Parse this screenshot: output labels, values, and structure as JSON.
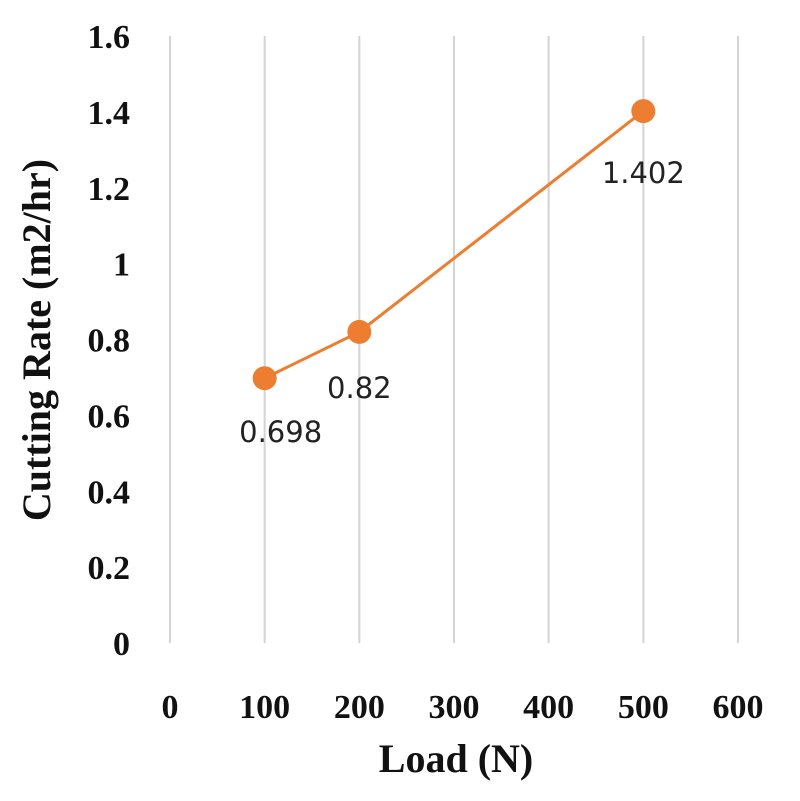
{
  "chart_data": {
    "type": "scatter",
    "title": "",
    "xlabel": "Load (N)",
    "ylabel": "Cutting Rate (m2/hr)",
    "xlim": [
      0,
      600
    ],
    "ylim": [
      0,
      1.6
    ],
    "x_ticks": [
      "0",
      "100",
      "200",
      "300",
      "400",
      "500",
      "600"
    ],
    "y_ticks": [
      "0",
      "0.2",
      "0.4",
      "0.6",
      "0.8",
      "1",
      "1.2",
      "1.4",
      "1.6"
    ],
    "grid": "vertical",
    "series": [
      {
        "name": "Cutting Rate",
        "x": [
          100,
          200,
          500
        ],
        "y": [
          0.698,
          0.82,
          1.402
        ],
        "labels": [
          "0.698",
          "0.82",
          "1.402"
        ],
        "color": "#ed7d31"
      }
    ]
  }
}
